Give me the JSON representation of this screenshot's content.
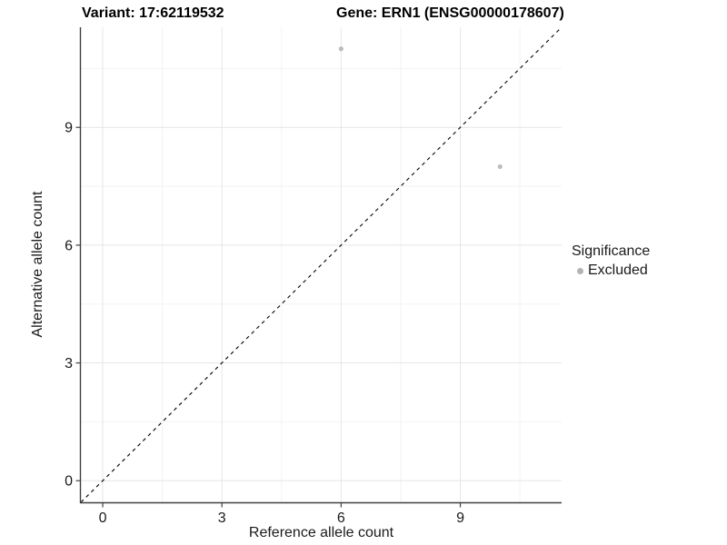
{
  "chart_data": {
    "type": "scatter",
    "titles": [
      "Variant: 17:62119532",
      "Gene: ERN1 (ENSG00000178607)"
    ],
    "xlabel": "Reference allele count",
    "ylabel": "Alternative allele count",
    "x_ticks": [
      0,
      3,
      6,
      9
    ],
    "y_ticks": [
      0,
      3,
      6,
      9
    ],
    "minor_ticks": [
      1.5,
      4.5,
      7.5,
      10.5
    ],
    "xlim": [
      -0.55,
      11.55
    ],
    "ylim": [
      -0.55,
      11.55
    ],
    "grid": true,
    "legend_position": "right",
    "identity_line": {
      "type": "y=x",
      "style": "dashed",
      "color": "#000000"
    },
    "series": [
      {
        "name": "Excluded",
        "color": "#bdbdbd",
        "points": [
          {
            "x": 6,
            "y": 11
          },
          {
            "x": 10,
            "y": 8
          }
        ]
      }
    ],
    "legend": {
      "title": "Significance",
      "items": [
        {
          "label": "Excluded",
          "color": "#b3b3b3"
        }
      ]
    }
  },
  "colors": {
    "background": "#ffffff",
    "grid_major": "#e6e6e6",
    "grid_minor": "#f2f2f2",
    "axis_line": "#404040",
    "tick_text": "#1a1a1a",
    "point": "#bdbdbd"
  }
}
